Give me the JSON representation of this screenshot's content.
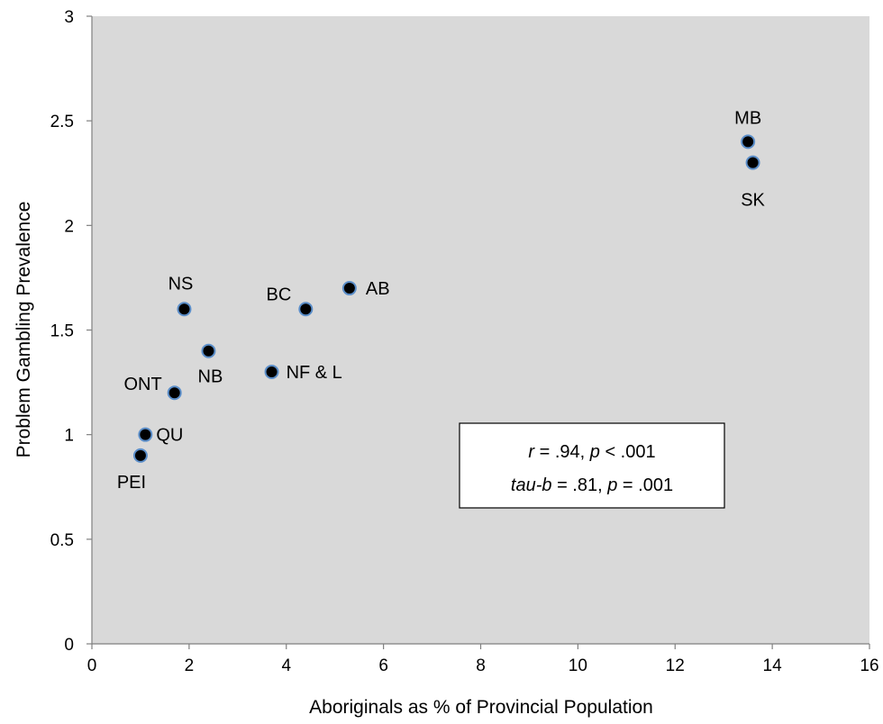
{
  "chart_data": {
    "type": "scatter",
    "title": "",
    "xlabel": "Aboriginals as % of Provincial Population",
    "ylabel": "Problem Gambling Prevalence",
    "xlim": [
      0,
      16
    ],
    "ylim": [
      0,
      3
    ],
    "xticks": [
      "0",
      "2",
      "4",
      "6",
      "8",
      "10",
      "12",
      "14",
      "16"
    ],
    "yticks": [
      "0",
      "0.5",
      "1",
      "1.5",
      "2",
      "2.5",
      "3"
    ],
    "grid": false,
    "background": "#d9d9d9",
    "marker_color": "#000000",
    "marker_edge_color": "#5b8ec9",
    "points": [
      {
        "label": "MB",
        "x": 13.5,
        "y": 2.4
      },
      {
        "label": "SK",
        "x": 13.6,
        "y": 2.3
      },
      {
        "label": "AB",
        "x": 5.3,
        "y": 1.7
      },
      {
        "label": "BC",
        "x": 4.4,
        "y": 1.6
      },
      {
        "label": "NS",
        "x": 1.9,
        "y": 1.6
      },
      {
        "label": "NB",
        "x": 2.4,
        "y": 1.4
      },
      {
        "label": "NF & L",
        "x": 3.7,
        "y": 1.3
      },
      {
        "label": "ONT",
        "x": 1.7,
        "y": 1.2
      },
      {
        "label": "QU",
        "x": 1.1,
        "y": 1.0
      },
      {
        "label": "PEI",
        "x": 1.0,
        "y": 0.9
      }
    ],
    "annotation": {
      "line1": {
        "r": "r",
        "r_eq": " = .94, ",
        "p": "p",
        "p_eq": " < .001"
      },
      "line2": {
        "tau": "tau-b",
        "tau_eq": " = .81, ",
        "p": "p",
        "p_eq": " = .001"
      }
    }
  }
}
